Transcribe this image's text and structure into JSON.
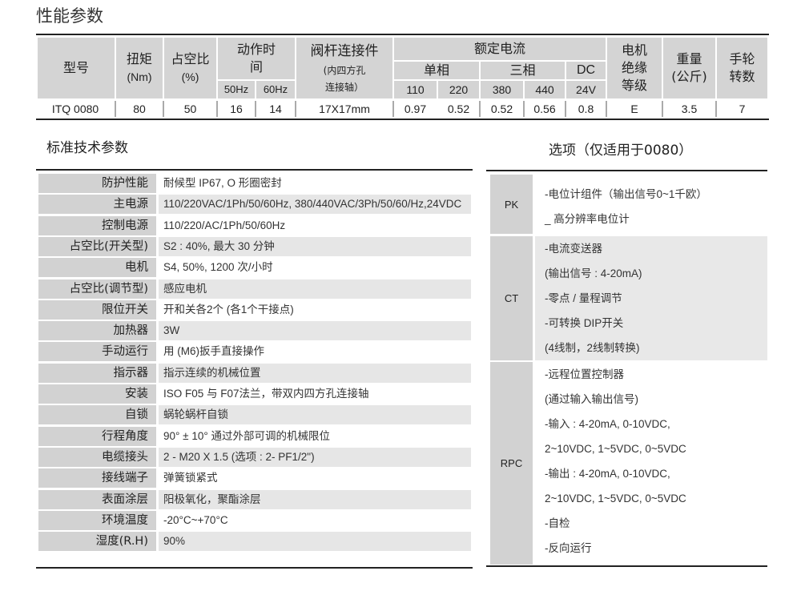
{
  "performance": {
    "title": "性能参数",
    "headers": {
      "model": "型号",
      "torque": "扭矩",
      "torque_unit": "(Nm)",
      "duty": "占空比",
      "duty_unit": "(%)",
      "action_time": "动作时间",
      "hz50": "50Hz",
      "hz60": "60Hz",
      "stem": "阀杆连接件",
      "stem_sub1": "(内四方孔",
      "stem_sub2": "连接轴）",
      "current": "额定电流",
      "single": "单相",
      "three": "三相",
      "dc": "DC",
      "v110": "110",
      "v220": "220",
      "v380": "380",
      "v440": "440",
      "v24": "24V",
      "insulation": "电机绝缘等级",
      "weight": "重量",
      "weight_unit": "(公斤)",
      "handwheel": "手轮转数"
    },
    "row": {
      "model": "ITQ 0080",
      "torque": "80",
      "duty": "50",
      "t50": "16",
      "t60": "14",
      "stem": "17X17mm",
      "c110": "0.97",
      "c220": "0.52",
      "c380": "0.52",
      "c440": "0.56",
      "c24": "0.8",
      "insulation": "E",
      "weight": "3.5",
      "handwheel": "7"
    }
  },
  "standard": {
    "title": "标准技术参数",
    "rows": [
      {
        "label": "防护性能",
        "value": "耐候型 IP67, O 形圈密封"
      },
      {
        "label": "主电源",
        "value": "110/220VAC/1Ph/50/60Hz, 380/440VAC/3Ph/50/60/Hz,24VDC"
      },
      {
        "label": "控制电源",
        "value": "110/220/AC/1Ph/50/60Hz"
      },
      {
        "label": "占空比(开关型)",
        "value": "S2 : 40%, 最大 30 分钟"
      },
      {
        "label": "电机",
        "value": "S4, 50%, 1200 次/小时"
      },
      {
        "label": "占空比(调节型)",
        "value": "感应电机"
      },
      {
        "label": "限位开关",
        "value": "开和关各2个 (各1个干接点)"
      },
      {
        "label": "加热器",
        "value": "3W"
      },
      {
        "label": "手动运行",
        "value": "用 (M6)扳手直接操作"
      },
      {
        "label": "指示器",
        "value": "指示连续的机械位置"
      },
      {
        "label": "安装",
        "value": "ISO F05 与 F07法兰，带双内四方孔连接轴"
      },
      {
        "label": "自锁",
        "value": "蜗轮蜗杆自锁"
      },
      {
        "label": "行程角度",
        "value": "90° ± 10° 通过外部可调的机械限位"
      },
      {
        "label": "电缆接头",
        "value": "2 - M20 X 1.5 (选项 : 2- PF1/2\")"
      },
      {
        "label": "接线端子",
        "value": "弹簧锁紧式"
      },
      {
        "label": "表面涂层",
        "value": "阳极氧化，聚酯涂层"
      },
      {
        "label": "环境温度",
        "value": "-20°C~+70°C"
      },
      {
        "label": "湿度(R.H)",
        "value": "90%"
      }
    ]
  },
  "options": {
    "title": "选项（仅适用于0080）",
    "groups": [
      {
        "code": "PK",
        "lines": [
          "-电位计组件（输出信号0~1千欧）",
          "_ 高分辨率电位计"
        ]
      },
      {
        "code": "CT",
        "lines": [
          "-电流变送器",
          "(输出信号 : 4-20mA)",
          "-零点 / 量程调节",
          "-可转换 DIP开关",
          "(4线制，2线制转换)"
        ]
      },
      {
        "code": "RPC",
        "lines": [
          "-远程位置控制器",
          "(通过输入输出信号)",
          "-输入 : 4-20mA, 0-10VDC,",
          "2~10VDC, 1~5VDC, 0~5VDC",
          "-输出 : 4-20mA, 0-10VDC,",
          "2~10VDC, 1~5VDC, 0~5VDC",
          "-自检",
          "-反向运行"
        ]
      }
    ]
  }
}
